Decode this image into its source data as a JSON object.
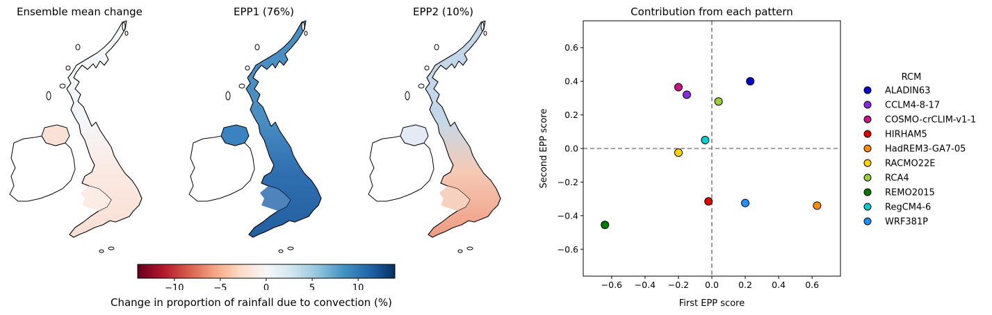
{
  "maps": [
    {
      "id": "mean",
      "title": "Ensemble mean change",
      "colors": {
        "north": "#f4f7fa",
        "south": "#fbe9e2",
        "ni": "#fbe0d6",
        "se": "#f9dfd3"
      }
    },
    {
      "id": "epp1",
      "title": "EPP1 (76%)",
      "colors": {
        "north": "#4a8fc4",
        "south": "#2f6fb0",
        "ni": "#3a82c0",
        "se": "#245f9f"
      }
    },
    {
      "id": "epp2",
      "title": "EPP2 (10%)",
      "colors": {
        "north": "#c2d8ea",
        "south": "#f6c9b5",
        "ni": "#e3ecf4",
        "se": "#ef9c82"
      }
    }
  ],
  "colorbar": {
    "label": "Change in proportion of rainfall due to convection (%)",
    "ticks": [
      "−10",
      "−5",
      "0",
      "5",
      "10"
    ],
    "tick_values": [
      -10,
      -5,
      0,
      5,
      10
    ],
    "range": [
      -14,
      14
    ],
    "colormap": "RdBu",
    "stops": [
      "#67001f",
      "#b2182b",
      "#d6604d",
      "#f4a582",
      "#fddbc7",
      "#f7f7f7",
      "#d1e5f0",
      "#92c5de",
      "#4393c3",
      "#2166ac",
      "#053061"
    ]
  },
  "chart_data": {
    "type": "scatter",
    "title": "Contribution from each pattern",
    "xlabel": "First EPP score",
    "ylabel": "Second EPP score",
    "xlim": [
      -0.77,
      0.77
    ],
    "ylim": [
      -0.76,
      0.76
    ],
    "xticks": [
      -0.6,
      -0.4,
      -0.2,
      0.0,
      0.2,
      0.4,
      0.6
    ],
    "xtick_labels": [
      "−0.6",
      "−0.4",
      "−0.2",
      "0.0",
      "0.2",
      "0.4",
      "0.6"
    ],
    "yticks": [
      -0.6,
      -0.4,
      -0.2,
      0.0,
      0.2,
      0.4,
      0.6
    ],
    "ytick_labels": [
      "−0.6",
      "−0.4",
      "−0.2",
      "0.0",
      "0.2",
      "0.4",
      "0.6"
    ],
    "grid": false,
    "reference_lines": {
      "x": 0,
      "y": 0,
      "style": "dashed",
      "color": "#808080"
    },
    "legend": {
      "title": "RCM",
      "placement": "outside-right"
    },
    "series": [
      {
        "name": "ALADIN63",
        "color": "#0000cd",
        "x": 0.23,
        "y": 0.4
      },
      {
        "name": "CCLM4-8-17",
        "color": "#8a2be2",
        "x": -0.15,
        "y": 0.32
      },
      {
        "name": "COSMO-crCLIM-v1-1",
        "color": "#c71585",
        "x": -0.2,
        "y": 0.365
      },
      {
        "name": "HIRHAM5",
        "color": "#e00000",
        "x": -0.02,
        "y": -0.315
      },
      {
        "name": "HadREM3-GA7-05",
        "color": "#ff8c00",
        "x": 0.63,
        "y": -0.34
      },
      {
        "name": "RACMO22E",
        "color": "#ffd700",
        "x": -0.2,
        "y": -0.025
      },
      {
        "name": "RCA4",
        "color": "#9acd32",
        "x": 0.04,
        "y": 0.28
      },
      {
        "name": "REMO2015",
        "color": "#007a00",
        "x": -0.64,
        "y": -0.455
      },
      {
        "name": "RegCM4-6",
        "color": "#00ced1",
        "x": -0.04,
        "y": 0.05
      },
      {
        "name": "WRF381P",
        "color": "#1e90ff",
        "x": 0.2,
        "y": -0.325
      }
    ]
  }
}
